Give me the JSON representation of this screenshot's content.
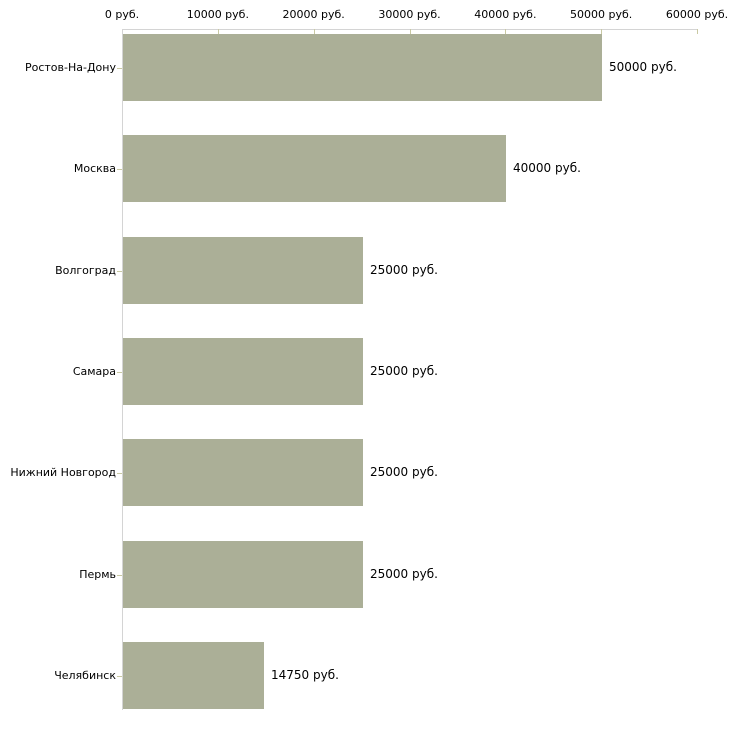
{
  "chart_data": {
    "type": "bar",
    "orientation": "horizontal",
    "title": "",
    "xlabel": "",
    "ylabel": "",
    "grid": false,
    "legend": false,
    "categories": [
      "Ростов-На-Дону",
      "Москва",
      "Волгоград",
      "Самара",
      "Нижний Новгород",
      "Пермь",
      "Челябинск"
    ],
    "values": [
      50000,
      40000,
      25000,
      25000,
      25000,
      25000,
      14750
    ],
    "value_labels": [
      "50000 руб.",
      "40000 руб.",
      "25000 руб.",
      "25000 руб.",
      "25000 руб.",
      "25000 руб.",
      "14750 руб."
    ],
    "x_axis": {
      "position": "top",
      "range": [
        0,
        60000
      ],
      "ticks": [
        0,
        10000,
        20000,
        30000,
        40000,
        50000,
        60000
      ],
      "tick_labels": [
        "0 руб.",
        "10000 руб.",
        "20000 руб.",
        "30000 руб.",
        "40000 руб.",
        "50000 руб.",
        "60000 руб."
      ]
    }
  },
  "colors": {
    "background": "#ffffff",
    "bar": "#abaf97",
    "axis_line": "#d4d4d4",
    "tick": "#c9c9a3",
    "text": "#000000"
  }
}
